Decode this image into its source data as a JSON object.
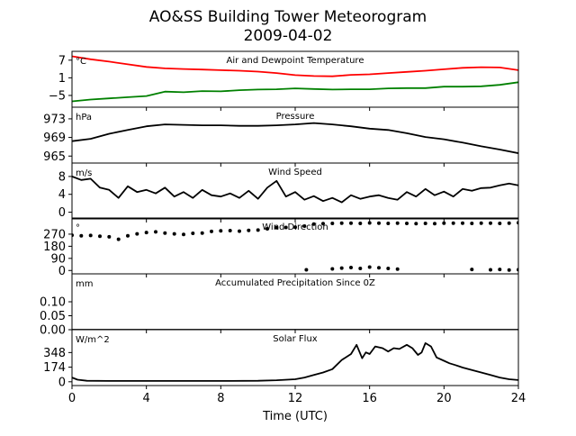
{
  "figure": {
    "title_line1": "AO&SS Building Tower Meteorogram",
    "title_line2": "2009-04-02",
    "xlabel": "Time (UTC)"
  },
  "chart_data": {
    "type": "line",
    "title": "AO&SS Building Tower Meteorogram 2009-04-02",
    "xlabel": "Time (UTC)",
    "xlim": [
      0,
      24
    ],
    "xticks": [
      0,
      4,
      8,
      12,
      16,
      20,
      24
    ],
    "panels": [
      {
        "id": "temperature",
        "label": "Air and Dewpoint Temperature",
        "unit": "°C",
        "ylim": [
          -9,
          10
        ],
        "yticks": [
          7,
          1,
          -5
        ],
        "ytick_labels": [
          "7",
          "1",
          "−5"
        ],
        "series": [
          {
            "name": "",
            "color": "#ff0000",
            "style": "line",
            "x": [
              0,
              1,
              2,
              3,
              4,
              5,
              6,
              7,
              8,
              9,
              10,
              11,
              12,
              13,
              14,
              15,
              16,
              17,
              18,
              19,
              20,
              21,
              22,
              23,
              24
            ],
            "y": [
              8.3,
              7.3,
              6.5,
              5.6,
              4.7,
              4.2,
              4.0,
              3.8,
              3.6,
              3.4,
              3.1,
              2.6,
              1.9,
              1.6,
              1.5,
              2.0,
              2.2,
              2.6,
              3.0,
              3.4,
              3.9,
              4.4,
              4.6,
              4.5,
              3.6
            ]
          },
          {
            "name": "",
            "color": "#008000",
            "style": "line",
            "x": [
              0,
              1,
              2,
              3,
              4,
              5,
              6,
              7,
              8,
              9,
              10,
              11,
              12,
              13,
              14,
              15,
              16,
              17,
              18,
              19,
              20,
              21,
              22,
              23,
              24
            ],
            "y": [
              -7.0,
              -6.4,
              -6.0,
              -5.6,
              -5.2,
              -3.7,
              -3.9,
              -3.5,
              -3.6,
              -3.2,
              -3.0,
              -2.9,
              -2.6,
              -2.8,
              -3.0,
              -2.9,
              -2.9,
              -2.6,
              -2.5,
              -2.5,
              -2.0,
              -2.0,
              -1.9,
              -1.4,
              -0.5
            ]
          }
        ]
      },
      {
        "id": "pressure",
        "label": "Pressure",
        "unit": "hPa",
        "ylim": [
          963.5,
          975.5
        ],
        "yticks": [
          965,
          969,
          973
        ],
        "ytick_labels": [
          "965",
          "969",
          "973"
        ],
        "series": [
          {
            "name": "",
            "color": "#000000",
            "style": "line",
            "x": [
              0,
              1,
              2,
              3,
              4,
              5,
              6,
              7,
              8,
              9,
              10,
              11,
              12,
              13,
              14,
              15,
              16,
              17,
              18,
              19,
              20,
              21,
              22,
              23,
              24
            ],
            "y": [
              968.2,
              968.7,
              969.8,
              970.6,
              971.4,
              971.8,
              971.7,
              971.6,
              971.6,
              971.5,
              971.5,
              971.6,
              971.8,
              972.1,
              971.8,
              971.4,
              970.9,
              970.6,
              969.9,
              969.1,
              968.6,
              967.9,
              967.1,
              966.4,
              965.6
            ]
          }
        ]
      },
      {
        "id": "wind_speed",
        "label": "Wind Speed",
        "unit": "m/s",
        "ylim": [
          -1.5,
          11
        ],
        "yticks": [
          0,
          4,
          8
        ],
        "ytick_labels": [
          "0",
          "4",
          "8"
        ],
        "series": [
          {
            "name": "",
            "color": "#000000",
            "style": "line",
            "x": [
              0,
              0.5,
              1,
              1.5,
              2,
              2.5,
              3,
              3.5,
              4,
              4.5,
              5,
              5.5,
              6,
              6.5,
              7,
              7.5,
              8,
              8.5,
              9,
              9.5,
              10,
              10.5,
              11,
              11.5,
              12,
              12.5,
              13,
              13.5,
              14,
              14.5,
              15,
              15.5,
              16,
              16.5,
              17,
              17.5,
              18,
              18.5,
              19,
              19.5,
              20,
              20.5,
              21,
              21.5,
              22,
              22.5,
              23,
              23.5,
              24
            ],
            "y": [
              8.0,
              7.2,
              7.5,
              5.5,
              5.0,
              3.2,
              5.8,
              4.5,
              5.0,
              4.2,
              5.5,
              3.5,
              4.5,
              3.2,
              5.0,
              3.8,
              3.5,
              4.2,
              3.2,
              4.8,
              3.0,
              5.5,
              7.0,
              3.5,
              4.5,
              2.8,
              3.6,
              2.5,
              3.2,
              2.2,
              3.8,
              3.0,
              3.5,
              3.8,
              3.2,
              2.8,
              4.5,
              3.5,
              5.2,
              3.8,
              4.6,
              3.5,
              5.2,
              4.8,
              5.4,
              5.5,
              6.0,
              6.4,
              6.0
            ]
          }
        ]
      },
      {
        "id": "wind_direction",
        "label": "Wind Direction",
        "unit": "°",
        "ylim": [
          -25,
          390
        ],
        "yticks": [
          0,
          90,
          180,
          270
        ],
        "ytick_labels": [
          "0",
          "90",
          "180",
          "270"
        ],
        "series": [
          {
            "name": "",
            "color": "#000000",
            "style": "dots",
            "x": [
              0,
              0.5,
              1,
              1.5,
              2,
              2.5,
              3,
              3.5,
              4,
              4.5,
              5,
              5.5,
              6,
              6.5,
              7,
              7.5,
              8,
              8.5,
              9,
              9.5,
              10,
              10.5,
              11,
              11.5,
              12,
              12.5,
              13,
              13.5,
              14,
              14.5,
              15,
              15.5,
              16,
              16.5,
              17,
              17.5,
              18,
              18.5,
              19,
              19.5,
              20,
              20.5,
              21,
              21.5,
              22,
              22.5,
              23,
              23.5,
              24
            ],
            "y": [
              262,
              258,
              260,
              255,
              250,
              232,
              258,
              272,
              282,
              287,
              278,
              272,
              268,
              276,
              278,
              290,
              294,
              296,
              292,
              298,
              300,
              310,
              318,
              320,
              322,
              330,
              345,
              348,
              350,
              352,
              352,
              350,
              353,
              352,
              350,
              351,
              350,
              348,
              350,
              348,
              352,
              352,
              352,
              350,
              352,
              352,
              350,
              352,
              355
            ]
          },
          {
            "name": "",
            "color": "#000000",
            "style": "dots",
            "x": [
              12.6,
              14,
              14.5,
              15,
              15.5,
              16,
              16.5,
              17,
              17.5,
              21.5,
              22.5,
              23,
              23.5,
              24
            ],
            "y": [
              5,
              12,
              18,
              22,
              15,
              25,
              20,
              15,
              10,
              8,
              5,
              8,
              4,
              6
            ]
          }
        ]
      },
      {
        "id": "precip",
        "label": "Accumulated Precipitation Since 0Z",
        "unit": "mm",
        "ylim": [
          0,
          0.2
        ],
        "yticks": [
          0,
          0.05,
          0.1
        ],
        "ytick_labels": [
          "0.00",
          "0.05",
          "0.10"
        ],
        "series": [
          {
            "name": "",
            "color": "#000000",
            "style": "line",
            "x": [
              0,
              24
            ],
            "y": [
              0,
              0
            ]
          }
        ]
      },
      {
        "id": "solar",
        "label": "Solar Flux",
        "unit": "W/m^2",
        "ylim": [
          -45,
          620
        ],
        "yticks": [
          0,
          174,
          348
        ],
        "ytick_labels": [
          "0",
          "174",
          "348"
        ],
        "series": [
          {
            "name": "",
            "color": "#000000",
            "style": "line",
            "x": [
              0,
              0.3,
              0.8,
              2,
              4,
              6,
              8,
              10,
              11,
              12,
              12.5,
              13,
              13.5,
              14,
              14.5,
              15,
              15.3,
              15.6,
              15.8,
              16,
              16.3,
              16.7,
              17,
              17.3,
              17.6,
              18,
              18.3,
              18.6,
              18.8,
              19,
              19.3,
              19.6,
              20,
              20.3,
              20.6,
              21,
              21.5,
              22,
              22.5,
              23,
              23.5,
              24
            ],
            "y": [
              50,
              25,
              12,
              10,
              10,
              10,
              10,
              12,
              18,
              30,
              50,
              80,
              110,
              150,
              260,
              330,
              440,
              280,
              350,
              330,
              420,
              400,
              360,
              400,
              390,
              440,
              400,
              320,
              350,
              460,
              420,
              290,
              250,
              220,
              200,
              170,
              140,
              110,
              80,
              50,
              30,
              20
            ]
          }
        ]
      }
    ]
  }
}
